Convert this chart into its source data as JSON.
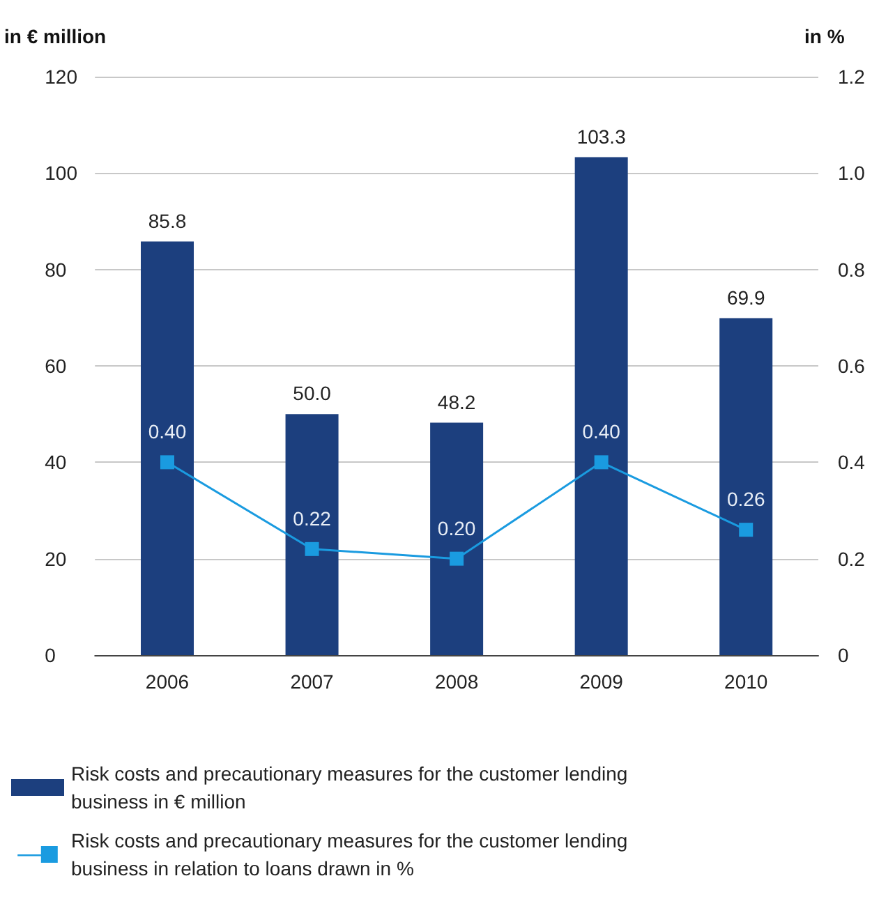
{
  "chart_data": {
    "type": "bar",
    "ylabel": "in € million",
    "y2label": "in %",
    "categories": [
      "2006",
      "2007",
      "2008",
      "2009",
      "2010"
    ],
    "series": [
      {
        "name": "Risk costs and precautionary measures for the customer lending business in € million",
        "color": "#1c3f7e",
        "values": [
          85.8,
          50.0,
          48.2,
          103.3,
          69.9
        ],
        "value_labels": [
          "85.8",
          "50.0",
          "48.2",
          "103.3",
          "69.9"
        ]
      },
      {
        "name": "Risk costs and precautionary measures for the customer lending business in relation to loans drawn in %",
        "type": "line",
        "axis": "y2",
        "color": "#1a9be0",
        "values": [
          0.4,
          0.22,
          0.2,
          0.4,
          0.26
        ],
        "value_labels": [
          "0.40",
          "0.22",
          "0.20",
          "0.40",
          "0.26"
        ],
        "marker": "square"
      }
    ],
    "ylim": [
      0,
      120
    ],
    "yticks": [
      0,
      20,
      40,
      60,
      80,
      100,
      120
    ],
    "y2lim": [
      0,
      1.2
    ],
    "y2ticks": [
      0,
      0.2,
      0.4,
      0.6,
      0.8,
      {
        "value": 1,
        "label": "1.0"
      },
      1.2
    ],
    "grid": "y",
    "legend": "bottom left"
  }
}
